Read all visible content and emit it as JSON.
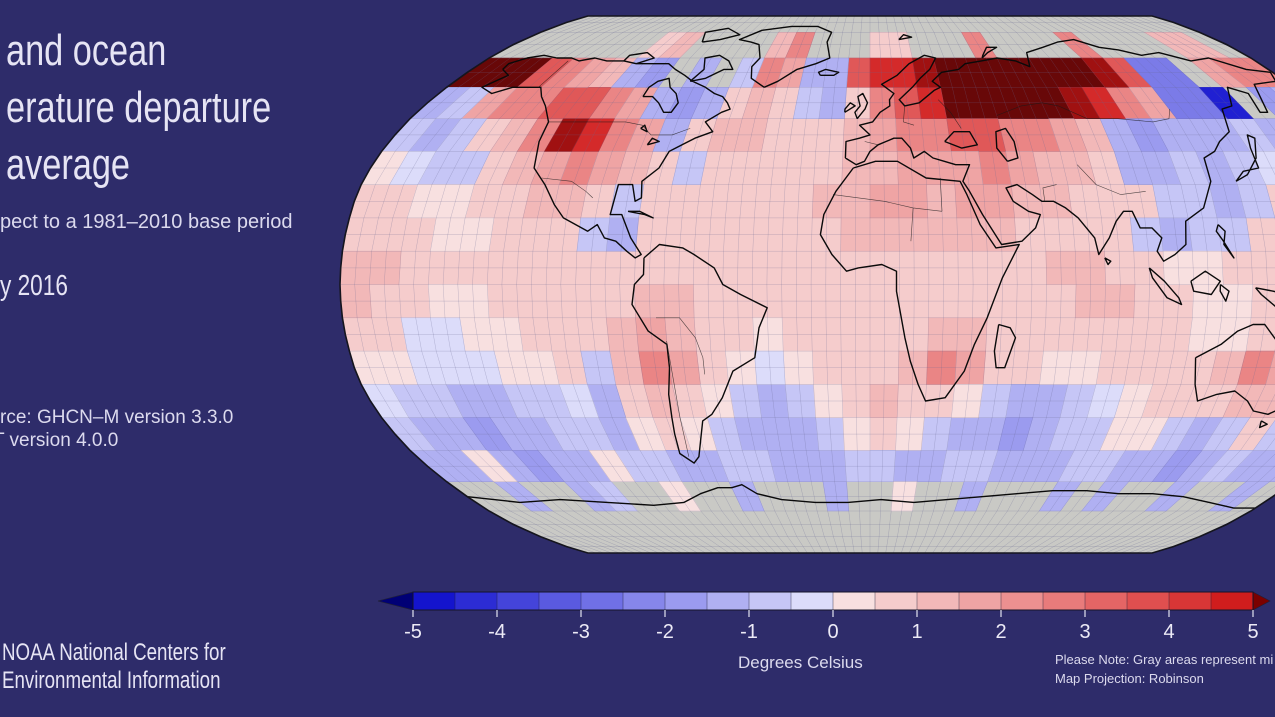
{
  "title": {
    "lines": [
      "and ocean",
      "erature departure",
      "average"
    ]
  },
  "subtitle": "pect to a 1981–2010 base period",
  "date_label": "y 2016",
  "source": {
    "lines": [
      "rce: GHCN–M version 3.3.0",
      "T version 4.0.0"
    ]
  },
  "footer": {
    "org_lines": [
      "NOAA National Centers for",
      "Environmental Information"
    ]
  },
  "notes": {
    "line1": "Please Note: Gray areas represent mi",
    "line2": "Map Projection: Robinson"
  },
  "colorbar": {
    "label": "Degrees Celsius",
    "ticks": [
      "-5",
      "-4",
      "-3",
      "-2",
      "-1",
      "0",
      "1",
      "2",
      "3",
      "4",
      "5"
    ],
    "segment_colors": [
      "#1414cd",
      "#2c2cd4",
      "#4444da",
      "#5a5ae0",
      "#7070e6",
      "#8686ea",
      "#9b9bef",
      "#b0b0f2",
      "#c6c6f6",
      "#dcdcfa",
      "#f8e0e0",
      "#f5cccc",
      "#f2b8b8",
      "#efa4a4",
      "#ec9090",
      "#e87b7b",
      "#e46565",
      "#df4f4f",
      "#d83636",
      "#d01d1d"
    ],
    "left_arrow_color": "#000075",
    "right_arrow_color": "#7b0000"
  },
  "colors": {
    "background": "#2e2c6a",
    "text_primary": "#e6e4f4",
    "text_secondary": "#dcdaee",
    "missing_gray": "#c9c9c5",
    "graticule": "#6a6a92",
    "coastline": "#0a0a0a",
    "map_outline": "#15151e"
  },
  "chart_data": {
    "type": "heatmap",
    "subtype": "world-map-temperature-anomaly",
    "projection": "Robinson",
    "units": "Degrees Celsius",
    "base_period": "1981–2010",
    "colorbar_range": [
      -5,
      5
    ],
    "colorbar_tick_values": [
      -5,
      -4,
      -3,
      -2,
      -1,
      0,
      1,
      2,
      3,
      4,
      5
    ],
    "legend_position": "bottom",
    "grid_on": true,
    "lon_range": [
      -180,
      180
    ],
    "lat_range": [
      -90,
      90
    ],
    "cell_size_deg": 10,
    "palette": {
      "M": {
        "value": null,
        "label": "missing data",
        "color": "#c9c9c5"
      },
      "a": {
        "value": -4.7,
        "color": "#2020d2"
      },
      "b": {
        "value": -3.5,
        "color": "#5050dd"
      },
      "c": {
        "value": -2.5,
        "color": "#7b7be8"
      },
      "d": {
        "value": -1.75,
        "color": "#9b9bef"
      },
      "e": {
        "value": -1.25,
        "color": "#b0b0f2"
      },
      "f": {
        "value": -0.75,
        "color": "#c6c6f6"
      },
      "h": {
        "value": -0.25,
        "color": "#dcdcfa"
      },
      "i": {
        "value": 0.25,
        "color": "#f8e0e0"
      },
      "j": {
        "value": 0.75,
        "color": "#f5cccc"
      },
      "k": {
        "value": 1.25,
        "color": "#f2b8b8"
      },
      "l": {
        "value": 1.75,
        "color": "#efa4a4"
      },
      "m": {
        "value": 2.5,
        "color": "#ea8585"
      },
      "n": {
        "value": 3.5,
        "color": "#e05858"
      },
      "o": {
        "value": 4.5,
        "color": "#d42a2a"
      },
      "p": {
        "value": 5.0,
        "color": "#a01111"
      },
      "q": {
        "value": 6.0,
        "color": "#680808"
      }
    },
    "rows": [
      "MMMMMMMMMMMMMMMMMMMMMMMMMMMMMMMMMMMM",
      "MMMMMMMjkMMMMkmMMMjjMMMmMMMMmMMMMkkM",
      "qqqnmlkedMeMfmleenoopqqqqqqqpnccMlmm",
      "eflmmnnmledejkjfejmnoqqqqqpomlccaMde",
      "fefjkmpomlejkkjjjklmmnnmmlkedeeefeff",
      "ihffjklmlkjfjjjjjkklllmlkkjeefefhjii",
      "jjiijjkkjfjjjjjjkkllkllkkjjjffefjjjj",
      "jjjiijjjfejjjjjjjkkkkkkjjjjfeffjjjjj",
      "kkjjjjjjjjjjjjjjjjjjjjjjkkjjiijjjjkk",
      "kjjiijjjjjkkjjjjjjjjjjjjjkkjjiijjjjj",
      "jjhhiijjjklkjjijjjjjkkjjjjjjjiijkkjj",
      "iihhhiijfkmljihijjjkmljjiijjjjkmlkji",
      "hffeeffhejkjifefijkjjifeefhijjjkkjff",
      "feedeeffeijifeeefijifeedeffiifefjfee",
      "eeiedeeiffeeffeeeffeeffeeeffeedefeee",
      "MMeMMefMMiMMeMMMeMMiMMeMMMeMeMMeMMeM",
      "MMMMMMMMMMMMMMMMMMMMMMMMMMMMMMMMMMMM",
      "MMMMMMMMMMMMMMMMMMMMMMMMMMMMMMMMMMMM"
    ]
  }
}
